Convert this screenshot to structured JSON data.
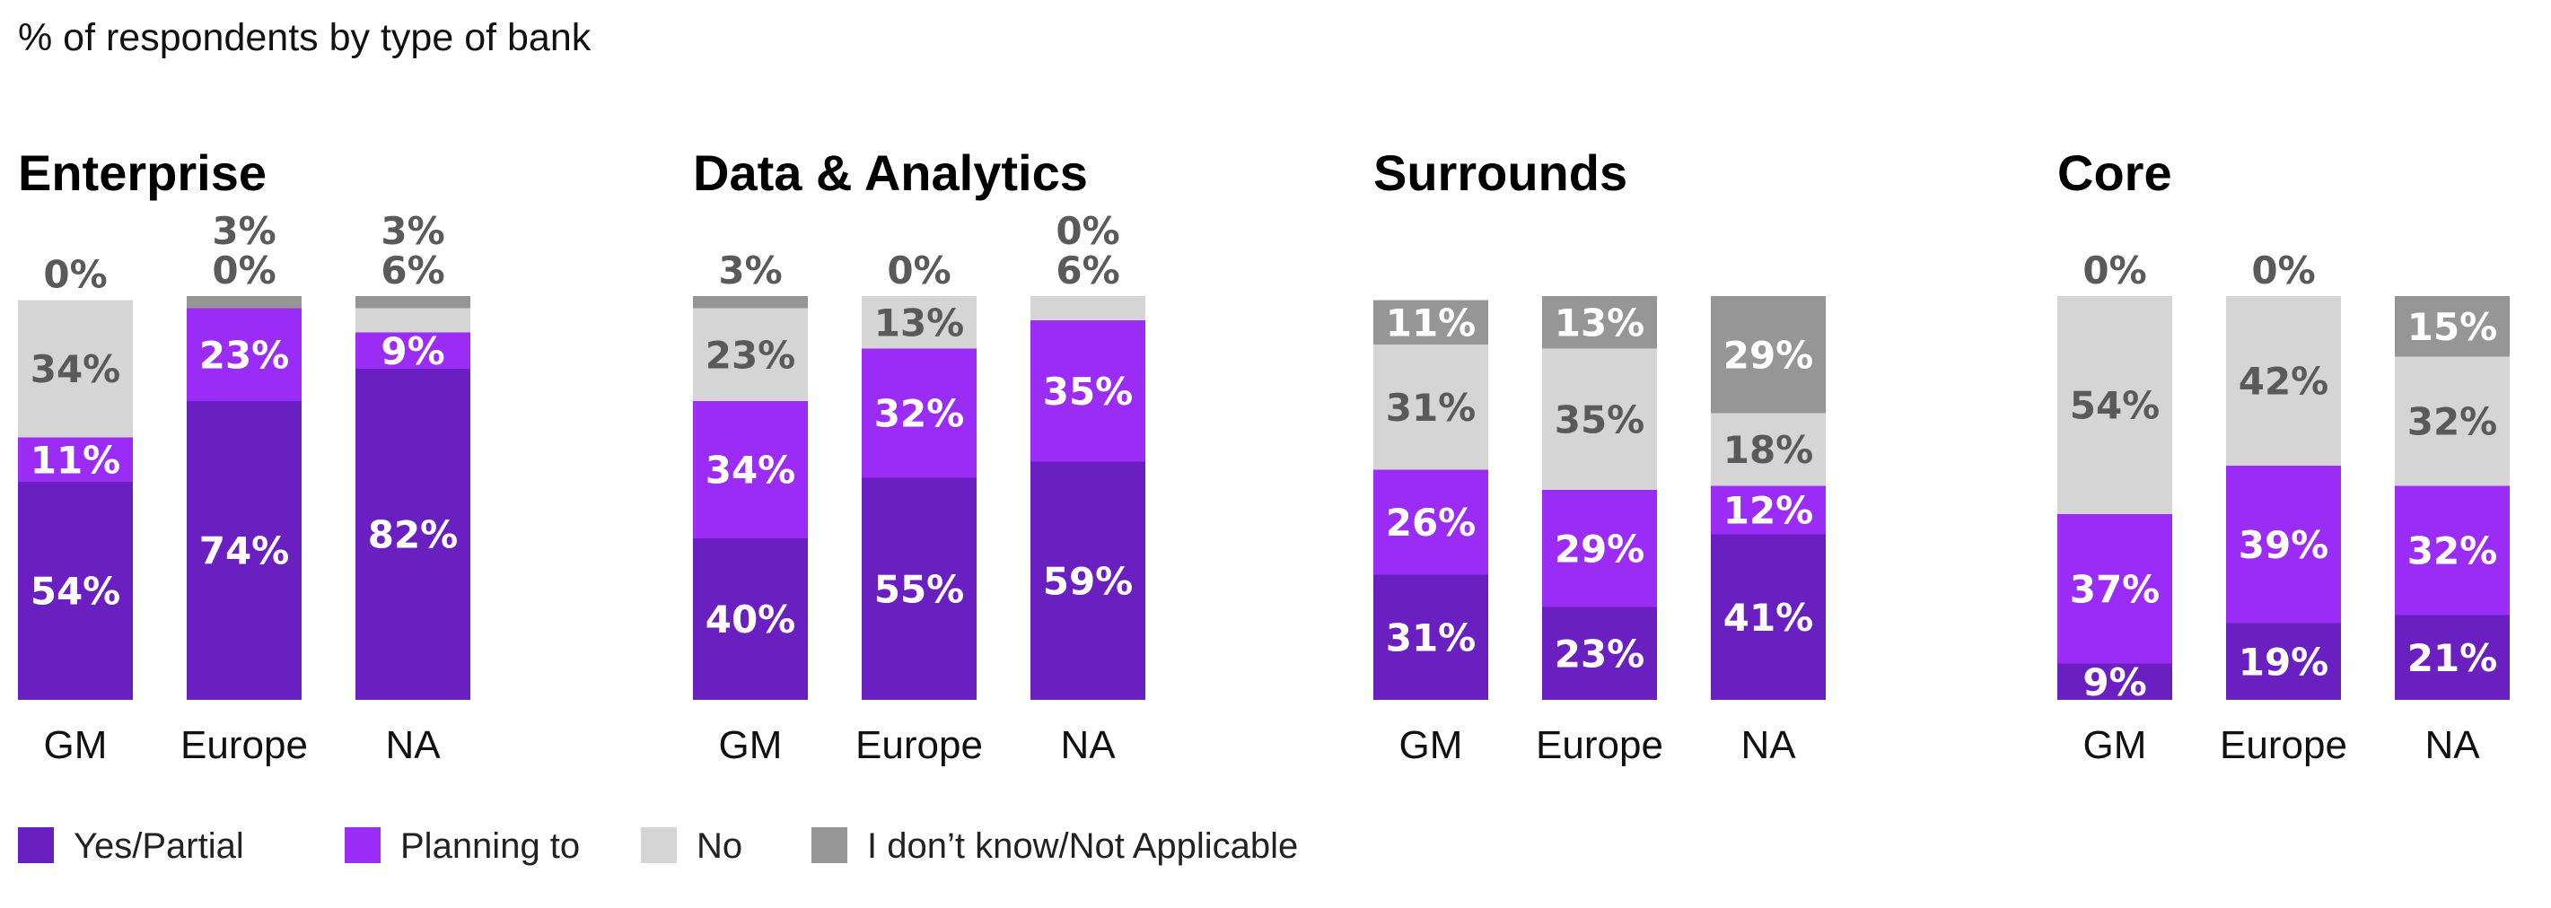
{
  "chart_data": {
    "type": "bar",
    "subtitle": "% of respondents by type of bank",
    "colors": {
      "yes_partial": "#6a1fc0",
      "planning_to": "#9b2cf5",
      "no": "#d5d5d5",
      "dont_know": "#969696",
      "text_light": "#ffffff",
      "text_dark": "#5a5a5a"
    },
    "legend": [
      {
        "key": "yes_partial",
        "label": "Yes/Partial"
      },
      {
        "key": "planning_to",
        "label": "Planning to"
      },
      {
        "key": "no",
        "label": "No"
      },
      {
        "key": "dont_know",
        "label": "I don’t know/Not Applicable"
      }
    ],
    "categories": [
      "GM",
      "Europe",
      "NA"
    ],
    "panels": [
      {
        "title": "Enterprise",
        "bars": [
          {
            "category": "GM",
            "yes_partial": 54,
            "planning_to": 11,
            "no": 34,
            "dont_know": 0
          },
          {
            "category": "Europe",
            "yes_partial": 74,
            "planning_to": 23,
            "no": 0,
            "dont_know": 3
          },
          {
            "category": "NA",
            "yes_partial": 82,
            "planning_to": 9,
            "no": 6,
            "dont_know": 3
          }
        ]
      },
      {
        "title": "Data & Analytics",
        "bars": [
          {
            "category": "GM",
            "yes_partial": 40,
            "planning_to": 34,
            "no": 23,
            "dont_know": 3
          },
          {
            "category": "Europe",
            "yes_partial": 55,
            "planning_to": 32,
            "no": 13,
            "dont_know": 0
          },
          {
            "category": "NA",
            "yes_partial": 59,
            "planning_to": 35,
            "no": 6,
            "dont_know": 0
          }
        ]
      },
      {
        "title": "Surrounds",
        "bars": [
          {
            "category": "GM",
            "yes_partial": 31,
            "planning_to": 26,
            "no": 31,
            "dont_know": 11
          },
          {
            "category": "Europe",
            "yes_partial": 23,
            "planning_to": 29,
            "no": 35,
            "dont_know": 13
          },
          {
            "category": "NA",
            "yes_partial": 41,
            "planning_to": 12,
            "no": 18,
            "dont_know": 29
          }
        ]
      },
      {
        "title": "Core",
        "bars": [
          {
            "category": "GM",
            "yes_partial": 9,
            "planning_to": 37,
            "no": 54,
            "dont_know": 0
          },
          {
            "category": "Europe",
            "yes_partial": 19,
            "planning_to": 39,
            "no": 42,
            "dont_know": 0
          },
          {
            "category": "NA",
            "yes_partial": 21,
            "planning_to": 32,
            "no": 32,
            "dont_know": 15
          }
        ]
      }
    ]
  }
}
